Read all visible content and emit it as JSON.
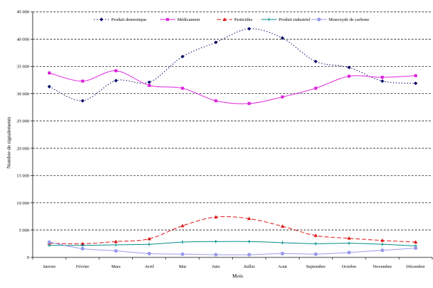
{
  "chart_data": {
    "type": "line",
    "title": "",
    "xlabel": "Mois",
    "ylabel": "Nombre de signalements",
    "ylim": [
      0,
      45000
    ],
    "ytick_step": 5000,
    "ytick_labels": [
      "0",
      "5 000",
      "10 000",
      "15 000",
      "20 000",
      "25 000",
      "30 000",
      "35 000",
      "40 000",
      "45 000"
    ],
    "grid": "horizontal dashed",
    "legend_position": "top",
    "categories": [
      "Janvier",
      "Février",
      "Mars",
      "Avril",
      "Mai",
      "Juin",
      "Juillet",
      "Août",
      "Septembre",
      "Octobre",
      "Novembre",
      "Décembre"
    ],
    "category_labels": [
      "Janvier",
      "Février",
      "Mars",
      "Avril",
      "Mai",
      "Juin",
      "Juillet",
      "Aout",
      "Septembre",
      "Octobre",
      "Novembre",
      "Décembre"
    ],
    "series": [
      {
        "name": "Produit domestique",
        "color": "#000066",
        "dash": "1.5,2.5",
        "marker": "diamond",
        "values": [
          31300,
          28700,
          32400,
          32100,
          36800,
          39400,
          41900,
          40200,
          35900,
          34800,
          32300,
          31900
        ]
      },
      {
        "name": "Médicament",
        "color": "#dd22dd",
        "dash": "",
        "marker": "square",
        "values": [
          33800,
          32300,
          34200,
          31500,
          31000,
          28700,
          28200,
          29400,
          31000,
          33200,
          33000,
          33300
        ]
      },
      {
        "name": "Pesticides",
        "color": "#dd1111",
        "dash": "6,3",
        "marker": "triangle",
        "values": [
          2600,
          2500,
          2900,
          3400,
          5800,
          7400,
          7100,
          5700,
          4000,
          3500,
          3100,
          2800
        ]
      },
      {
        "name": "Produit industriel",
        "color": "#008b8b",
        "dash": "",
        "marker": "cross",
        "values": [
          2200,
          2200,
          2300,
          2400,
          2800,
          2900,
          2900,
          2700,
          2500,
          2600,
          2400,
          2100
        ]
      },
      {
        "name": "Monoxyde de carbone",
        "color": "#9999ee",
        "dash": "",
        "marker": "circle",
        "values": [
          2800,
          1600,
          1200,
          700,
          600,
          500,
          500,
          700,
          600,
          900,
          1300,
          1700
        ]
      }
    ]
  }
}
